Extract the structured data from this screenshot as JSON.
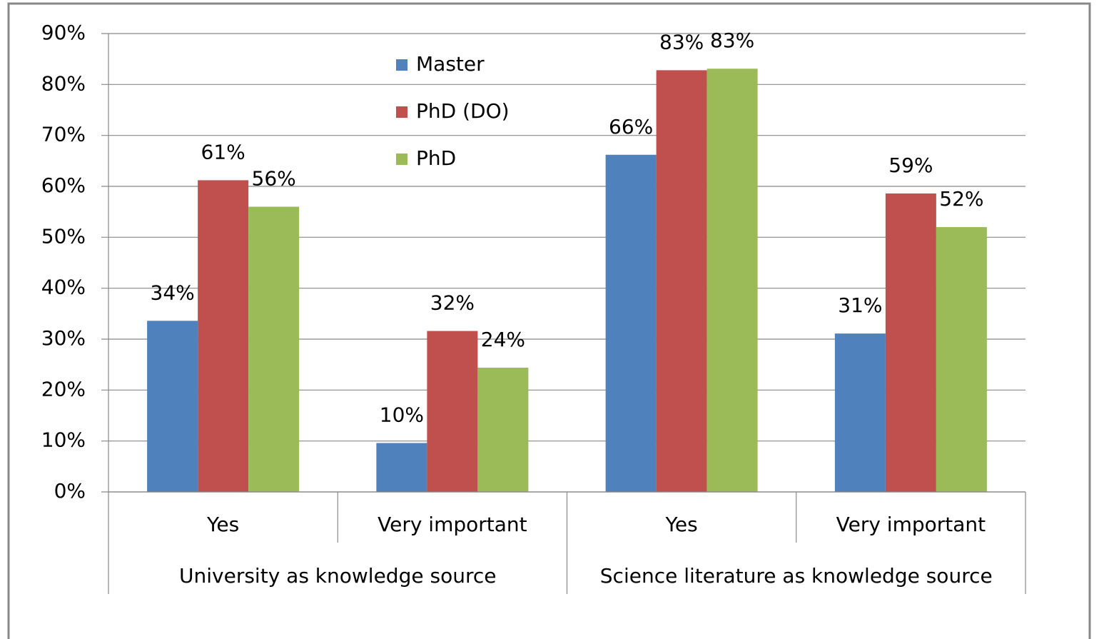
{
  "chart_data": {
    "type": "bar",
    "categories": [
      "Yes",
      "Very important",
      "Yes",
      "Very important"
    ],
    "groups": [
      "University as knowledge source",
      "Science literature as knowledge source"
    ],
    "series": [
      {
        "name": "Master",
        "color": "#4f81bd",
        "values": [
          33.6,
          9.6,
          66.2,
          31.1
        ],
        "value_labels": [
          "34%",
          "10%",
          "66%",
          "31%"
        ]
      },
      {
        "name": "PhD (DO)",
        "color": "#c0504d",
        "values": [
          61.2,
          31.6,
          82.8,
          58.6
        ],
        "value_labels": [
          "61%",
          "32%",
          "83%",
          "59%"
        ]
      },
      {
        "name": "PhD",
        "color": "#9bbb59",
        "values": [
          56.0,
          24.4,
          83.1,
          52.0
        ],
        "value_labels": [
          "56%",
          "24%",
          "83%",
          "52%"
        ]
      }
    ],
    "ylim": [
      0,
      90
    ],
    "yticks": [
      {
        "value": 0,
        "label": "0%"
      },
      {
        "value": 10,
        "label": "10%"
      },
      {
        "value": 20,
        "label": "20%"
      },
      {
        "value": 30,
        "label": "30%"
      },
      {
        "value": 40,
        "label": "40%"
      },
      {
        "value": 50,
        "label": "50%"
      },
      {
        "value": 60,
        "label": "60%"
      },
      {
        "value": 70,
        "label": "70%"
      },
      {
        "value": 80,
        "label": "80%"
      },
      {
        "value": 90,
        "label": "90%"
      }
    ],
    "grid": true,
    "legend": "top"
  }
}
